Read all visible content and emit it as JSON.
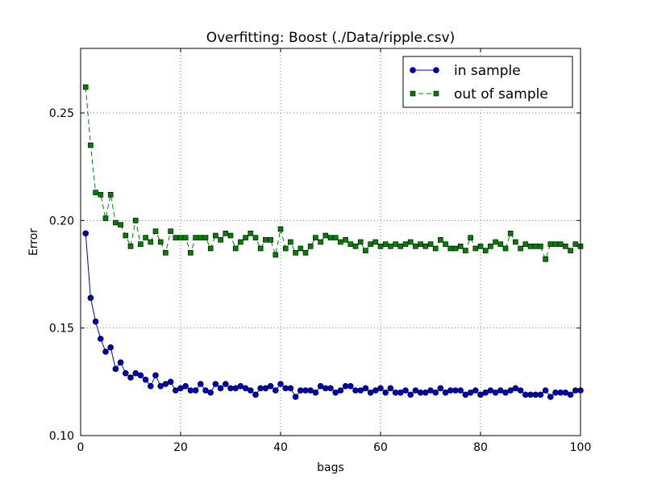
{
  "chart_data": {
    "type": "line",
    "title": "Overfitting: Boost (./Data/ripple.csv)",
    "xlabel": "bags",
    "ylabel": "Error",
    "xlim": [
      0,
      100
    ],
    "ylim": [
      0.1,
      0.28
    ],
    "x_ticks": [
      0,
      20,
      40,
      60,
      80,
      100
    ],
    "x_tick_labels": [
      "0",
      "20",
      "40",
      "60",
      "80",
      "100"
    ],
    "y_ticks": [
      0.1,
      0.15,
      0.2,
      0.25
    ],
    "y_tick_labels": [
      "0.10",
      "0.15",
      "0.20",
      "0.25"
    ],
    "grid": true,
    "legend_position": "top-right",
    "x": [
      1,
      2,
      3,
      4,
      5,
      6,
      7,
      8,
      9,
      10,
      11,
      12,
      13,
      14,
      15,
      16,
      17,
      18,
      19,
      20,
      21,
      22,
      23,
      24,
      25,
      26,
      27,
      28,
      29,
      30,
      31,
      32,
      33,
      34,
      35,
      36,
      37,
      38,
      39,
      40,
      41,
      42,
      43,
      44,
      45,
      46,
      47,
      48,
      49,
      50,
      51,
      52,
      53,
      54,
      55,
      56,
      57,
      58,
      59,
      60,
      61,
      62,
      63,
      64,
      65,
      66,
      67,
      68,
      69,
      70,
      71,
      72,
      73,
      74,
      75,
      76,
      77,
      78,
      79,
      80,
      81,
      82,
      83,
      84,
      85,
      86,
      87,
      88,
      89,
      90,
      91,
      92,
      93,
      94,
      95,
      96,
      97,
      98,
      99,
      100
    ],
    "series": [
      {
        "name": "in sample",
        "color": "#0000bf",
        "marker": "circle",
        "line_style": "solid",
        "values": [
          0.194,
          0.164,
          0.153,
          0.145,
          0.139,
          0.141,
          0.131,
          0.134,
          0.129,
          0.127,
          0.129,
          0.128,
          0.126,
          0.123,
          0.128,
          0.123,
          0.124,
          0.125,
          0.121,
          0.122,
          0.123,
          0.121,
          0.121,
          0.124,
          0.121,
          0.12,
          0.124,
          0.122,
          0.124,
          0.122,
          0.122,
          0.123,
          0.122,
          0.121,
          0.119,
          0.122,
          0.122,
          0.123,
          0.121,
          0.124,
          0.122,
          0.122,
          0.118,
          0.121,
          0.121,
          0.121,
          0.12,
          0.123,
          0.122,
          0.122,
          0.12,
          0.121,
          0.123,
          0.123,
          0.121,
          0.121,
          0.122,
          0.12,
          0.121,
          0.122,
          0.12,
          0.122,
          0.12,
          0.12,
          0.121,
          0.119,
          0.121,
          0.12,
          0.12,
          0.121,
          0.12,
          0.122,
          0.12,
          0.121,
          0.121,
          0.121,
          0.119,
          0.12,
          0.121,
          0.119,
          0.12,
          0.121,
          0.12,
          0.121,
          0.12,
          0.121,
          0.122,
          0.121,
          0.119,
          0.119,
          0.119,
          0.119,
          0.121,
          0.118,
          0.12,
          0.12,
          0.12,
          0.119,
          0.121,
          0.121
        ]
      },
      {
        "name": "out of sample",
        "color": "#007f00",
        "marker": "square",
        "line_style": "dashed",
        "values": [
          0.262,
          0.235,
          0.213,
          0.212,
          0.201,
          0.212,
          0.199,
          0.198,
          0.193,
          0.188,
          0.2,
          0.189,
          0.192,
          0.19,
          0.195,
          0.19,
          0.185,
          0.195,
          0.192,
          0.192,
          0.192,
          0.185,
          0.192,
          0.192,
          0.192,
          0.187,
          0.193,
          0.191,
          0.194,
          0.193,
          0.187,
          0.19,
          0.192,
          0.194,
          0.192,
          0.187,
          0.191,
          0.191,
          0.184,
          0.196,
          0.187,
          0.19,
          0.185,
          0.187,
          0.185,
          0.188,
          0.192,
          0.19,
          0.193,
          0.192,
          0.192,
          0.19,
          0.191,
          0.189,
          0.188,
          0.19,
          0.186,
          0.189,
          0.19,
          0.188,
          0.189,
          0.188,
          0.189,
          0.188,
          0.189,
          0.19,
          0.188,
          0.189,
          0.188,
          0.189,
          0.187,
          0.191,
          0.189,
          0.187,
          0.187,
          0.188,
          0.186,
          0.192,
          0.187,
          0.188,
          0.186,
          0.188,
          0.19,
          0.189,
          0.187,
          0.194,
          0.19,
          0.187,
          0.189,
          0.188,
          0.188,
          0.188,
          0.182,
          0.189,
          0.189,
          0.189,
          0.188,
          0.186,
          0.189,
          0.188
        ]
      }
    ]
  }
}
